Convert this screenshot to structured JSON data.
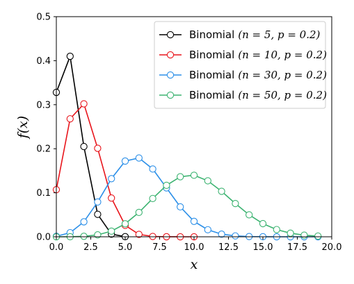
{
  "chart_data": {
    "type": "line",
    "xlabel": "x",
    "ylabel": "f(x)",
    "xlim": [
      0,
      20
    ],
    "ylim": [
      0,
      0.5
    ],
    "xticks": [
      "0.0",
      "2.5",
      "5.0",
      "7.5",
      "10.0",
      "12.5",
      "15.0",
      "17.5",
      "20.0"
    ],
    "yticks": [
      "0.0",
      "0.1",
      "0.2",
      "0.3",
      "0.4",
      "0.5"
    ],
    "grid": false,
    "legend_position": "top-right",
    "series": [
      {
        "name": "Binomial",
        "params": "(n = 5, p = 0.2)",
        "color": "#000000",
        "x": [
          0,
          1,
          2,
          3,
          4,
          5
        ],
        "values": [
          0.328,
          0.41,
          0.205,
          0.051,
          0.006,
          0.0003
        ]
      },
      {
        "name": "Binomial",
        "params": "(n = 10, p = 0.2)",
        "color": "#e8141b",
        "x": [
          0,
          1,
          2,
          3,
          4,
          5,
          6,
          7,
          8,
          9,
          10
        ],
        "values": [
          0.107,
          0.268,
          0.302,
          0.201,
          0.088,
          0.026,
          0.0055,
          0.0008,
          0.0001,
          0.0,
          0.0
        ]
      },
      {
        "name": "Binomial",
        "params": "(n = 30, p = 0.2)",
        "color": "#2b8fe8",
        "x": [
          0,
          1,
          2,
          3,
          4,
          5,
          6,
          7,
          8,
          9,
          10,
          11,
          12,
          13,
          14,
          15,
          16,
          17,
          18,
          19
        ],
        "values": [
          0.0012,
          0.0093,
          0.034,
          0.079,
          0.132,
          0.172,
          0.179,
          0.154,
          0.111,
          0.068,
          0.035,
          0.016,
          0.006,
          0.002,
          0.0006,
          0.0002,
          0.0,
          0.0,
          0.0,
          0.0
        ]
      },
      {
        "name": "Binomial",
        "params": "(n = 50, p = 0.2)",
        "color": "#3cb371",
        "x": [
          0,
          1,
          2,
          3,
          4,
          5,
          6,
          7,
          8,
          9,
          10,
          11,
          12,
          13,
          14,
          15,
          16,
          17,
          18,
          19
        ],
        "values": [
          0.0,
          0.0002,
          0.0011,
          0.0044,
          0.0128,
          0.0295,
          0.0554,
          0.087,
          0.1169,
          0.1364,
          0.1398,
          0.1271,
          0.1033,
          0.0755,
          0.0499,
          0.0299,
          0.0164,
          0.0082,
          0.0037,
          0.0016
        ]
      }
    ]
  }
}
